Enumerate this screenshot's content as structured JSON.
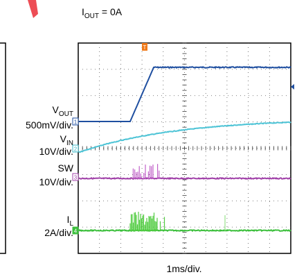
{
  "header": {
    "condition": {
      "symbol": "I",
      "subscript": "OUT",
      "text": " = 0A"
    }
  },
  "trigger": "T",
  "channels": [
    {
      "number": "1",
      "name": {
        "symbol": "V",
        "subscript": "OUT"
      },
      "scale": "500mV/div."
    },
    {
      "number": "2",
      "name": {
        "symbol": "V",
        "subscript": "IN"
      },
      "scale": "10V/div."
    },
    {
      "number": "3",
      "name": {
        "symbol": "SW"
      },
      "scale": "10V/div."
    },
    {
      "number": "4",
      "name": {
        "symbol": "I",
        "subscript": "L"
      },
      "scale": "2A/div."
    }
  ],
  "x_scale": "1ms/div."
}
